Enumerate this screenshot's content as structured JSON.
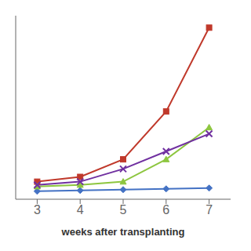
{
  "chart_data": {
    "type": "line",
    "x_label": "weeks after transplanting",
    "x": [
      3,
      4,
      5,
      6,
      7
    ],
    "series": [
      {
        "color": "#4472C4",
        "marker": "diamond",
        "values": [
          1.0,
          1.1,
          1.2,
          1.3,
          1.4
        ]
      },
      {
        "color": "#C0392B",
        "marker": "square",
        "values": [
          2.2,
          2.8,
          5.0,
          11.0,
          21.5
        ]
      },
      {
        "color": "#8DC63F",
        "marker": "triangle",
        "values": [
          1.6,
          1.8,
          2.2,
          5.0,
          9.0
        ]
      },
      {
        "color": "#7030A0",
        "marker": "x",
        "values": [
          1.8,
          2.2,
          3.8,
          6.0,
          8.2
        ]
      }
    ],
    "xlim": [
      2.5,
      7.5
    ],
    "xticks": [
      3,
      4,
      5,
      6,
      7
    ],
    "ylim": [
      0,
      23
    ],
    "grid": false,
    "tick_labels": "x"
  }
}
